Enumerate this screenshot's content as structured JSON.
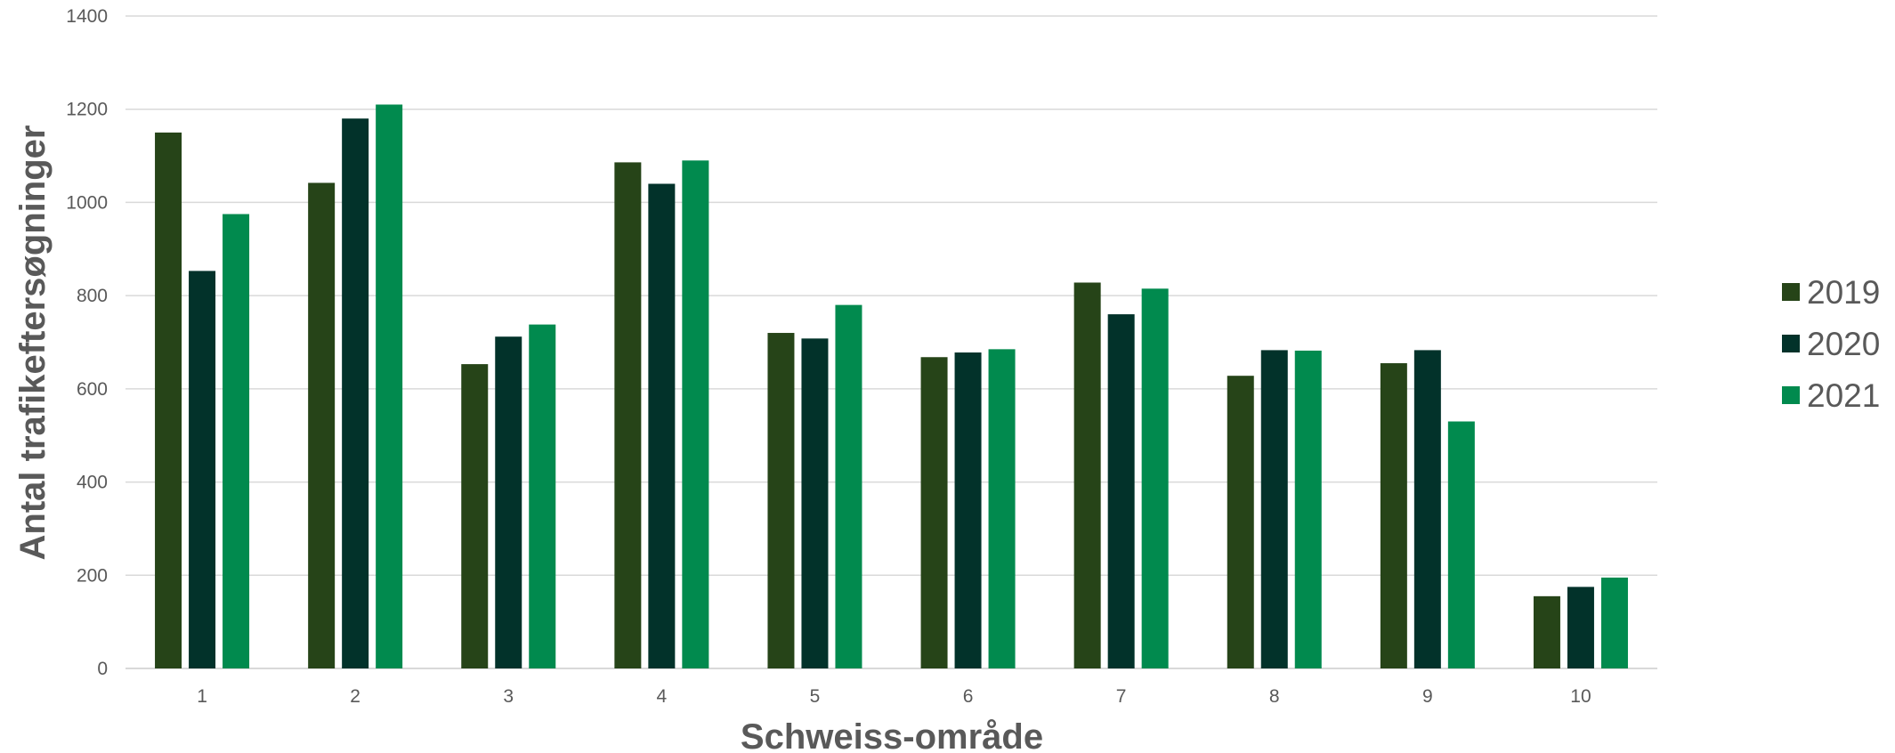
{
  "chart_data": {
    "type": "bar",
    "title": "",
    "xlabel": "Schweiss-område",
    "ylabel": "Antal trafikeftersøgninger",
    "categories": [
      "1",
      "2",
      "3",
      "4",
      "5",
      "6",
      "7",
      "8",
      "9",
      "10"
    ],
    "ylim": [
      0,
      1400
    ],
    "yticks": [
      "0",
      "200",
      "400",
      "600",
      "800",
      "1000",
      "1200",
      "1400"
    ],
    "grid": true,
    "legend_position": "right",
    "series": [
      {
        "name": "2019",
        "color": "#264418",
        "values": [
          1150,
          1042,
          653,
          1086,
          720,
          668,
          828,
          628,
          655,
          155
        ]
      },
      {
        "name": "2020",
        "color": "#02322a",
        "values": [
          853,
          1180,
          712,
          1040,
          708,
          678,
          760,
          683,
          683,
          175
        ]
      },
      {
        "name": "2021",
        "color": "#018a4e",
        "values": [
          975,
          1210,
          738,
          1090,
          780,
          685,
          815,
          682,
          530,
          195
        ]
      }
    ]
  }
}
